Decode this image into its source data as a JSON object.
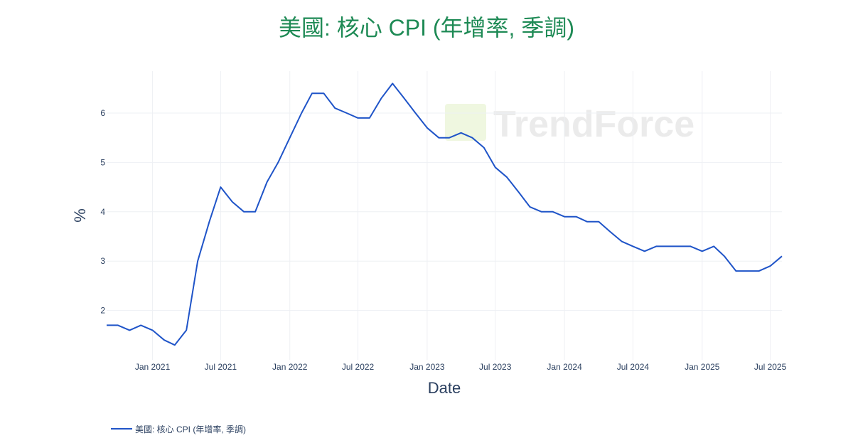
{
  "colors": {
    "title": "#1e8a55",
    "line": "#1f54c8",
    "grid": "#eef0f4",
    "text": "#2a3f5f",
    "watermark_accent": "#9ccc3c"
  },
  "watermark": {
    "text": "TrendForce"
  },
  "chart_data": {
    "type": "line",
    "title": "美國: 核心 CPI (年增率, 季調)",
    "xlabel": "Date",
    "ylabel": "%",
    "x_range": [
      "2020-09-01",
      "2025-08-01"
    ],
    "y_range": [
      1.0,
      6.85
    ],
    "y_ticks": [
      2,
      3,
      4,
      5,
      6
    ],
    "x_ticks": [
      {
        "date": "2021-01-01",
        "label": "Jan 2021"
      },
      {
        "date": "2021-07-01",
        "label": "Jul 2021"
      },
      {
        "date": "2022-01-01",
        "label": "Jan 2022"
      },
      {
        "date": "2022-07-01",
        "label": "Jul 2022"
      },
      {
        "date": "2023-01-01",
        "label": "Jan 2023"
      },
      {
        "date": "2023-07-01",
        "label": "Jul 2023"
      },
      {
        "date": "2024-01-01",
        "label": "Jan 2024"
      },
      {
        "date": "2024-07-01",
        "label": "Jul 2024"
      },
      {
        "date": "2025-01-01",
        "label": "Jan 2025"
      },
      {
        "date": "2025-07-01",
        "label": "Jul 2025"
      }
    ],
    "grid": true,
    "legend_position": "bottom-left",
    "series": [
      {
        "name": "美國: 核心 CPI (年增率, 季調)",
        "x": [
          "2020-09-01",
          "2020-10-01",
          "2020-11-01",
          "2020-12-01",
          "2021-01-01",
          "2021-02-01",
          "2021-03-01",
          "2021-04-01",
          "2021-05-01",
          "2021-06-01",
          "2021-07-01",
          "2021-08-01",
          "2021-09-01",
          "2021-10-01",
          "2021-11-01",
          "2021-12-01",
          "2022-01-01",
          "2022-02-01",
          "2022-03-01",
          "2022-04-01",
          "2022-05-01",
          "2022-06-01",
          "2022-07-01",
          "2022-08-01",
          "2022-09-01",
          "2022-10-01",
          "2022-11-01",
          "2022-12-01",
          "2023-01-01",
          "2023-02-01",
          "2023-03-01",
          "2023-04-01",
          "2023-05-01",
          "2023-06-01",
          "2023-07-01",
          "2023-08-01",
          "2023-09-01",
          "2023-10-01",
          "2023-11-01",
          "2023-12-01",
          "2024-01-01",
          "2024-02-01",
          "2024-03-01",
          "2024-04-01",
          "2024-05-01",
          "2024-06-01",
          "2024-07-01",
          "2024-08-01",
          "2024-09-01",
          "2024-10-01",
          "2024-11-01",
          "2024-12-01",
          "2025-01-01",
          "2025-02-01",
          "2025-03-01",
          "2025-04-01",
          "2025-05-01",
          "2025-06-01",
          "2025-07-01",
          "2025-08-01"
        ],
        "y": [
          1.7,
          1.7,
          1.6,
          1.7,
          1.6,
          1.4,
          1.3,
          1.6,
          3.0,
          3.8,
          4.5,
          4.2,
          4.0,
          4.0,
          4.6,
          5.0,
          5.5,
          6.0,
          6.4,
          6.4,
          6.1,
          6.0,
          5.9,
          5.9,
          6.3,
          6.6,
          6.3,
          6.0,
          5.7,
          5.5,
          5.5,
          5.6,
          5.5,
          5.3,
          4.9,
          4.7,
          4.4,
          4.1,
          4.0,
          4.0,
          3.9,
          3.9,
          3.8,
          3.8,
          3.6,
          3.4,
          3.3,
          3.2,
          3.3,
          3.3,
          3.3,
          3.3,
          3.2,
          3.3,
          3.1,
          2.8,
          2.8,
          2.8,
          2.9,
          3.1
        ]
      }
    ]
  }
}
